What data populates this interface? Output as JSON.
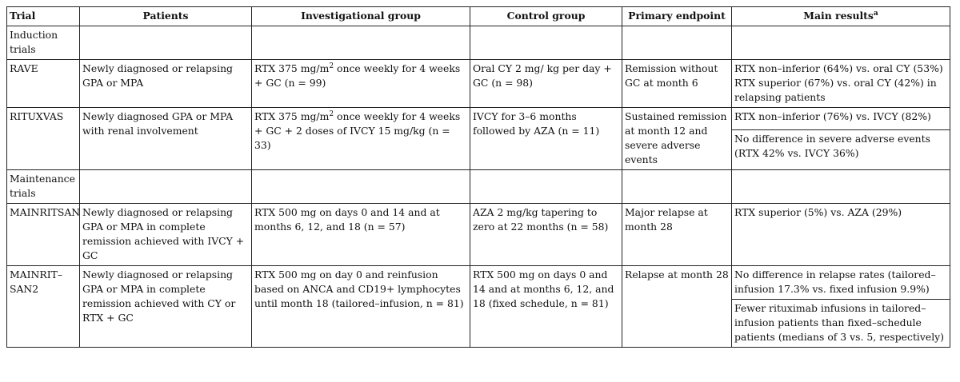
{
  "headers": {
    "trial": "Trial",
    "patients": "Patients",
    "investigational": "Investigational group",
    "control": "Control group",
    "endpoint": "Primary  endpoint",
    "results": "Main results",
    "results_sup": "a"
  },
  "sections": {
    "induction": "Induction trials",
    "maintenance": "Maintenance trials"
  },
  "rows": {
    "rave": {
      "trial": "RAVE",
      "patients": "Newly diagnosed or relapsing GPA or MPA",
      "inv_pre": "RTX 375 mg/m",
      "inv_sup": "2",
      "inv_post": " once weekly for 4 weeks + GC (n = 99)",
      "control": "Oral CY 2 mg/ kg per day + GC (n = 98)",
      "endpoint": "Remission without GC at month 6",
      "result1": "RTX non–inferior (64%) vs. oral CY (53%)",
      "result2": "RTX superior (67%) vs. oral CY (42%) in relapsing patients"
    },
    "rituxvas": {
      "trial": "RITUXVAS",
      "patients": "Newly diagnosed GPA or MPA with renal involvement",
      "inv_pre": "RTX 375 mg/m",
      "inv_sup": "2",
      "inv_post": " once weekly for 4 weeks + GC + 2 doses of IVCY 15 mg/kg (n = 33)",
      "control": "IVCY for 3–6 months followed by AZA (n = 11)",
      "endpoint": "Sustained remission at month 12 and severe adverse events",
      "result1": "RTX non–inferior (76%) vs. IVCY (82%)",
      "result2": "No difference in severe adverse events (RTX 42% vs. IVCY 36%)"
    },
    "mainritsan": {
      "trial": "MAINRITSAN",
      "patients": "Newly diagnosed or relapsing GPA or MPA in complete remission achieved with IVCY + GC",
      "inv": "RTX 500 mg on days 0 and 14 and at months 6, 12, and 18 (n = 57)",
      "control": "AZA 2 mg/kg tapering to zero at 22 months (n = 58)",
      "endpoint": "Major relapse at month 28",
      "result1": "RTX superior (5%) vs. AZA (29%)"
    },
    "mainritsan2": {
      "trial": "MAINRIT– SAN2",
      "patients": "Newly diagnosed or relapsing GPA or MPA in complete remission achieved with CY or RTX + GC",
      "inv": "RTX 500 mg on day 0 and reinfusion based on ANCA and CD19+ lymphocytes until month 18 (tailored–infusion, n = 81)",
      "control": "RTX 500 mg on days 0 and 14 and at months 6, 12, and 18 (fixed schedule, n = 81)",
      "endpoint": "Relapse at month 28",
      "result1": "No difference in relapse rates (tailored–infusion 17.3% vs. fixed infusion 9.9%)",
      "result2": "Fewer rituximab infusions in tailored–infusion patients than fixed–schedule patients (medians of 3 vs. 5, respectively)"
    }
  }
}
